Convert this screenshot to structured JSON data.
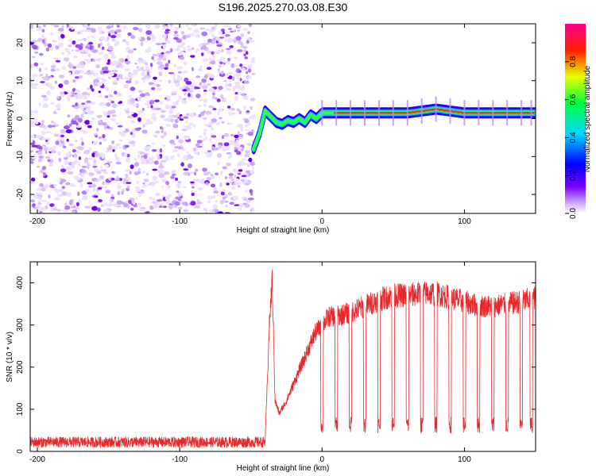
{
  "title": "S196.2025.270.03.08.E30",
  "chart_data": [
    {
      "type": "heatmap",
      "name": "spectrogram",
      "xlabel": "Height of straight line (km)",
      "ylabel": "Frequency (Hz)",
      "xlim": [
        -205,
        150
      ],
      "ylim": [
        -25,
        25
      ],
      "xticks": [
        -200,
        -100,
        0,
        100
      ],
      "xtick_labels": [
        "-200",
        "-100",
        "0",
        "100"
      ],
      "yticks": [
        -20,
        -10,
        0,
        10,
        20
      ],
      "ytick_labels": [
        "-20",
        "-10",
        "0",
        "10",
        "20"
      ],
      "noise_region_x": [
        -205,
        -48
      ],
      "ridge": {
        "description": "dominant frequency ridge",
        "x": [
          -48,
          -44,
          -40,
          -36,
          -32,
          -28,
          -24,
          -20,
          -16,
          -12,
          -8,
          -4,
          0,
          10,
          20,
          40,
          60,
          80,
          100,
          120,
          150
        ],
        "y": [
          -8,
          -4,
          2,
          0.5,
          -1,
          -1.5,
          -0.5,
          -1,
          0,
          -1,
          1,
          0,
          1.5,
          1.5,
          1.5,
          1.5,
          1.5,
          2.5,
          1.5,
          1.5,
          1.5
        ]
      },
      "colorbar": {
        "label": "Normalized spectral amplitude",
        "range": [
          0,
          1
        ],
        "ticks": [
          0.0,
          0.2,
          0.4,
          0.6,
          0.8
        ],
        "tick_labels": [
          "0.0",
          "0.2",
          "0.4",
          "0.6",
          "0.8"
        ],
        "colors": [
          "#ffffff",
          "#7b00ff",
          "#0000ff",
          "#00d8ff",
          "#00ff40",
          "#e8ff00",
          "#ff2000",
          "#ff0090"
        ]
      }
    },
    {
      "type": "line",
      "name": "snr",
      "xlabel": "Height of straight line (km)",
      "ylabel": "SNR (10 * v/v)",
      "xlim": [
        -205,
        150
      ],
      "ylim": [
        0,
        450
      ],
      "xticks": [
        -200,
        -100,
        0,
        100
      ],
      "xtick_labels": [
        "-200",
        "-100",
        "0",
        "100"
      ],
      "yticks": [
        0,
        100,
        200,
        300,
        400
      ],
      "ytick_labels": [
        "0",
        "100",
        "200",
        "300",
        "400"
      ],
      "color": "#e8282a",
      "envelope": {
        "x": [
          -205,
          -40,
          -37,
          -35,
          -33,
          -30,
          -25,
          -20,
          -15,
          -10,
          -5,
          0,
          5,
          10,
          20,
          30,
          40,
          50,
          60,
          70,
          80,
          90,
          100,
          110,
          120,
          130,
          140,
          150
        ],
        "y": [
          22,
          22,
          300,
          410,
          120,
          90,
          120,
          160,
          200,
          240,
          280,
          300,
          320,
          320,
          330,
          345,
          360,
          370,
          370,
          375,
          375,
          365,
          355,
          345,
          345,
          350,
          355,
          365
        ]
      },
      "dropouts_x": [
        -42,
        0,
        10,
        20,
        30,
        40,
        50,
        60,
        70,
        80,
        90,
        100,
        110,
        120,
        130,
        140,
        147
      ],
      "dropout_level": 55
    }
  ]
}
